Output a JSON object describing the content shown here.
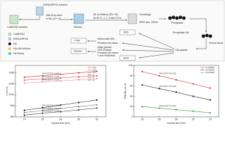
{
  "diagram": {
    "solution_b": "(NH4)2HPO4 solution",
    "solution_a": "Ca(NO3)2 solution",
    "step_add": "Add drop-wise",
    "step_add_cond": "in N2, pH~10",
    "mixture": "Mixture",
    "step_age": "60 ml Mixture (Ph~10)",
    "step_age_cond": "At 40°C, 1, 2, 4 and 12 hr",
    "step_centrifuge": "Centrifuge",
    "step_centrifuge_cond": "5000 rpm, 20min",
    "precipitate": "Precipitate",
    "precipitate_ha": "Precipitate HA",
    "freeze": "Freeze dried",
    "powder": "HA powder",
    "xrd": "XRD",
    "ftir": "FTIR",
    "raman": "Raman",
    "sem": "SEM",
    "kbr": "Mixed with KBr",
    "discs": "Pressed into discs",
    "grind": "Edge grinder",
    "fine": "Fine Powder",
    "slices": "Pressed into slices",
    "thickness": "1 mm thickness",
    "legend": [
      "Ca(NO3)2",
      "(NH4)2HPO4",
      "HA",
      "HA-KBr Mixture",
      "HA Slices"
    ]
  },
  "chart_data": [
    {
      "type": "line",
      "x_label": "Crystal size (nm)",
      "y_label": "ν (cm-1)",
      "x": [
        24,
        26,
        28,
        30,
        32
      ],
      "xlim": [
        23,
        33
      ],
      "xticks": [
        24,
        26,
        28,
        30,
        32
      ],
      "ylim": [
        960,
        1100
      ],
      "yticks": [
        960,
        990,
        1020,
        1050,
        1080
      ],
      "series": [
        {
          "name": "ν3 a",
          "color": "#d62728",
          "values": [
            1068,
            1072,
            1076,
            1080,
            1084
          ]
        },
        {
          "name": "ν3 b",
          "color": "#e0555a",
          "values": [
            1060,
            1063,
            1066,
            1069,
            1072
          ]
        },
        {
          "name": "ν3 c",
          "color": "#f08a96",
          "values": [
            1052,
            1055,
            1058,
            1061,
            1064
          ]
        },
        {
          "name": "ν1",
          "color": "#222222",
          "values": [
            978,
            985,
            992,
            999,
            1006
          ]
        },
        {
          "name": "ν4",
          "color": "#777777",
          "values": [
            972,
            977,
            983,
            988,
            993
          ]
        },
        {
          "name": "ν2",
          "color": "#444444",
          "values": [
            965,
            970,
            974,
            979,
            984
          ]
        }
      ],
      "annotations": [
        "R²=0.979  P<0.001",
        "R²=0.964  P<0.001",
        "R²=0.963  P<0.001",
        "R²=0.927  P<0.001",
        "R²=0.948  P<0.001",
        "R²=0.938  P<0.001"
      ]
    },
    {
      "type": "line",
      "x_label": "Crystal size (nm)",
      "y_label": "FWHM (cm-1)",
      "x": [
        24,
        26,
        28,
        30,
        32
      ],
      "xlim": [
        23,
        33
      ],
      "xticks": [
        24,
        26,
        28,
        30,
        32
      ],
      "ylim": [
        0,
        100
      ],
      "yticks": [
        0,
        20,
        40,
        60,
        80,
        100
      ],
      "series": [
        {
          "name": "ν1 FWHM",
          "color": "#d62728",
          "values": [
            88,
            80,
            72,
            64,
            56
          ]
        },
        {
          "name": "ν3 FWHM",
          "color": "#222222",
          "values": [
            62,
            55,
            48,
            40,
            33
          ]
        },
        {
          "name": "ν4 FWHM",
          "color": "#2ca02c",
          "values": [
            20,
            17,
            14,
            11,
            8
          ]
        }
      ],
      "annotations": [
        "R²=0.979  P<0.001",
        "R²=0.957  P<0.001",
        "R²=0.912  P<0.001"
      ]
    }
  ]
}
